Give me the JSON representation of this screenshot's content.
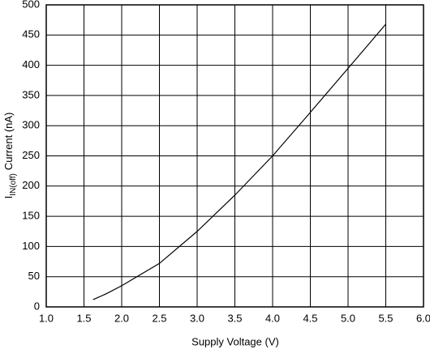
{
  "chart_data": {
    "type": "line",
    "x_label": "Supply Voltage (V)",
    "y_label": {
      "symbol": "I",
      "subscript": "IN(off)",
      "text": "Current (nA)"
    },
    "x": [
      1.62,
      1.8,
      2.0,
      2.5,
      3.0,
      3.5,
      4.0,
      4.5,
      5.0,
      5.5
    ],
    "series": [
      {
        "color": "#000000",
        "values": [
          12,
          22,
          35,
          72,
          125,
          185,
          250,
          322,
          395,
          468
        ]
      }
    ],
    "xlim": [
      1,
      6
    ],
    "xticks": [
      {
        "value": 1,
        "label": "1.0"
      },
      1.5,
      {
        "value": 2,
        "label": "2.0"
      },
      2.5,
      {
        "value": 3,
        "label": "3.0"
      },
      3.5,
      {
        "value": 4,
        "label": "4.0"
      },
      4.5,
      {
        "value": 5,
        "label": "5.0"
      },
      5.5,
      {
        "value": 6,
        "label": "6.0"
      }
    ],
    "ylim": [
      0,
      500
    ],
    "yticks": [
      0,
      50,
      100,
      150,
      200,
      250,
      300,
      350,
      400,
      450,
      500
    ],
    "grid": true
  }
}
